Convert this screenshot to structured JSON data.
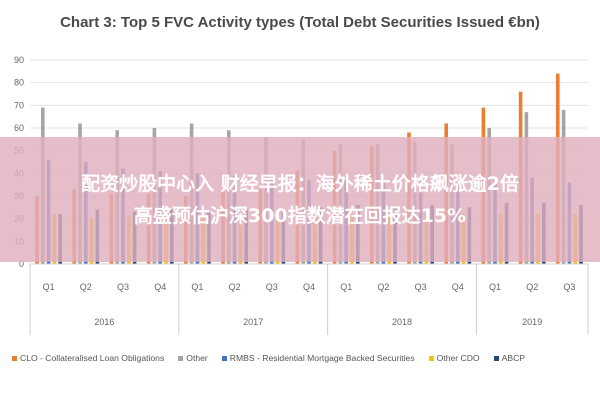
{
  "title": "Chart 3: Top 5 FVC Activity types (Total Debt Securities Issued €bn)",
  "banner": {
    "line1": "配资炒股中心入 财经早报：海外稀土价格飙涨逾2倍",
    "line2": "高盛预估沪深300指数潜在回报达15%"
  },
  "chart_data": {
    "type": "bar",
    "title": "Chart 3: Top 5 FVC Activity types (Total Debt Securities Issued €bn)",
    "ylim": [
      0,
      90
    ],
    "yticks": [
      "0",
      "10",
      "20",
      "30",
      "40",
      "50",
      "60",
      "70",
      "80",
      "90"
    ],
    "grid": true,
    "legend_position": "bottom",
    "categories": [
      "Q1",
      "Q2",
      "Q3",
      "Q4",
      "Q1",
      "Q2",
      "Q3",
      "Q4",
      "Q1",
      "Q2",
      "Q3",
      "Q4",
      "Q1",
      "Q2",
      "Q3"
    ],
    "groups": [
      {
        "label": "2016",
        "count": 4
      },
      {
        "label": "2017",
        "count": 4
      },
      {
        "label": "2018",
        "count": 4
      },
      {
        "label": "2019",
        "count": 3
      }
    ],
    "series": [
      {
        "name": "CLO - Collateralised Loan Obligations",
        "color": "#ed7d31",
        "values": [
          30,
          33,
          31,
          31,
          30,
          32,
          33,
          41,
          50,
          52,
          58,
          62,
          69,
          76,
          84
        ]
      },
      {
        "name": "Other",
        "color": "#a5a5a5",
        "values": [
          69,
          62,
          59,
          60,
          62,
          59,
          56,
          55,
          53,
          53,
          54,
          53,
          60,
          67,
          68
        ]
      },
      {
        "name": "RMBS - Residential Mortgage Backed Securities",
        "color": "#4472c4",
        "values": [
          46,
          45,
          42,
          41,
          40,
          39,
          38,
          37,
          37,
          36,
          35,
          35,
          38,
          38,
          36
        ]
      },
      {
        "name": "Other CDO",
        "color": "#ffc000",
        "values": [
          22,
          20,
          21,
          21,
          20,
          21,
          22,
          22,
          22,
          22,
          23,
          22,
          22,
          22,
          22
        ]
      },
      {
        "name": "ABCP",
        "color": "#264478",
        "values": [
          22,
          24,
          23,
          24,
          23,
          24,
          24,
          25,
          26,
          25,
          26,
          25,
          27,
          27,
          26
        ]
      }
    ]
  }
}
